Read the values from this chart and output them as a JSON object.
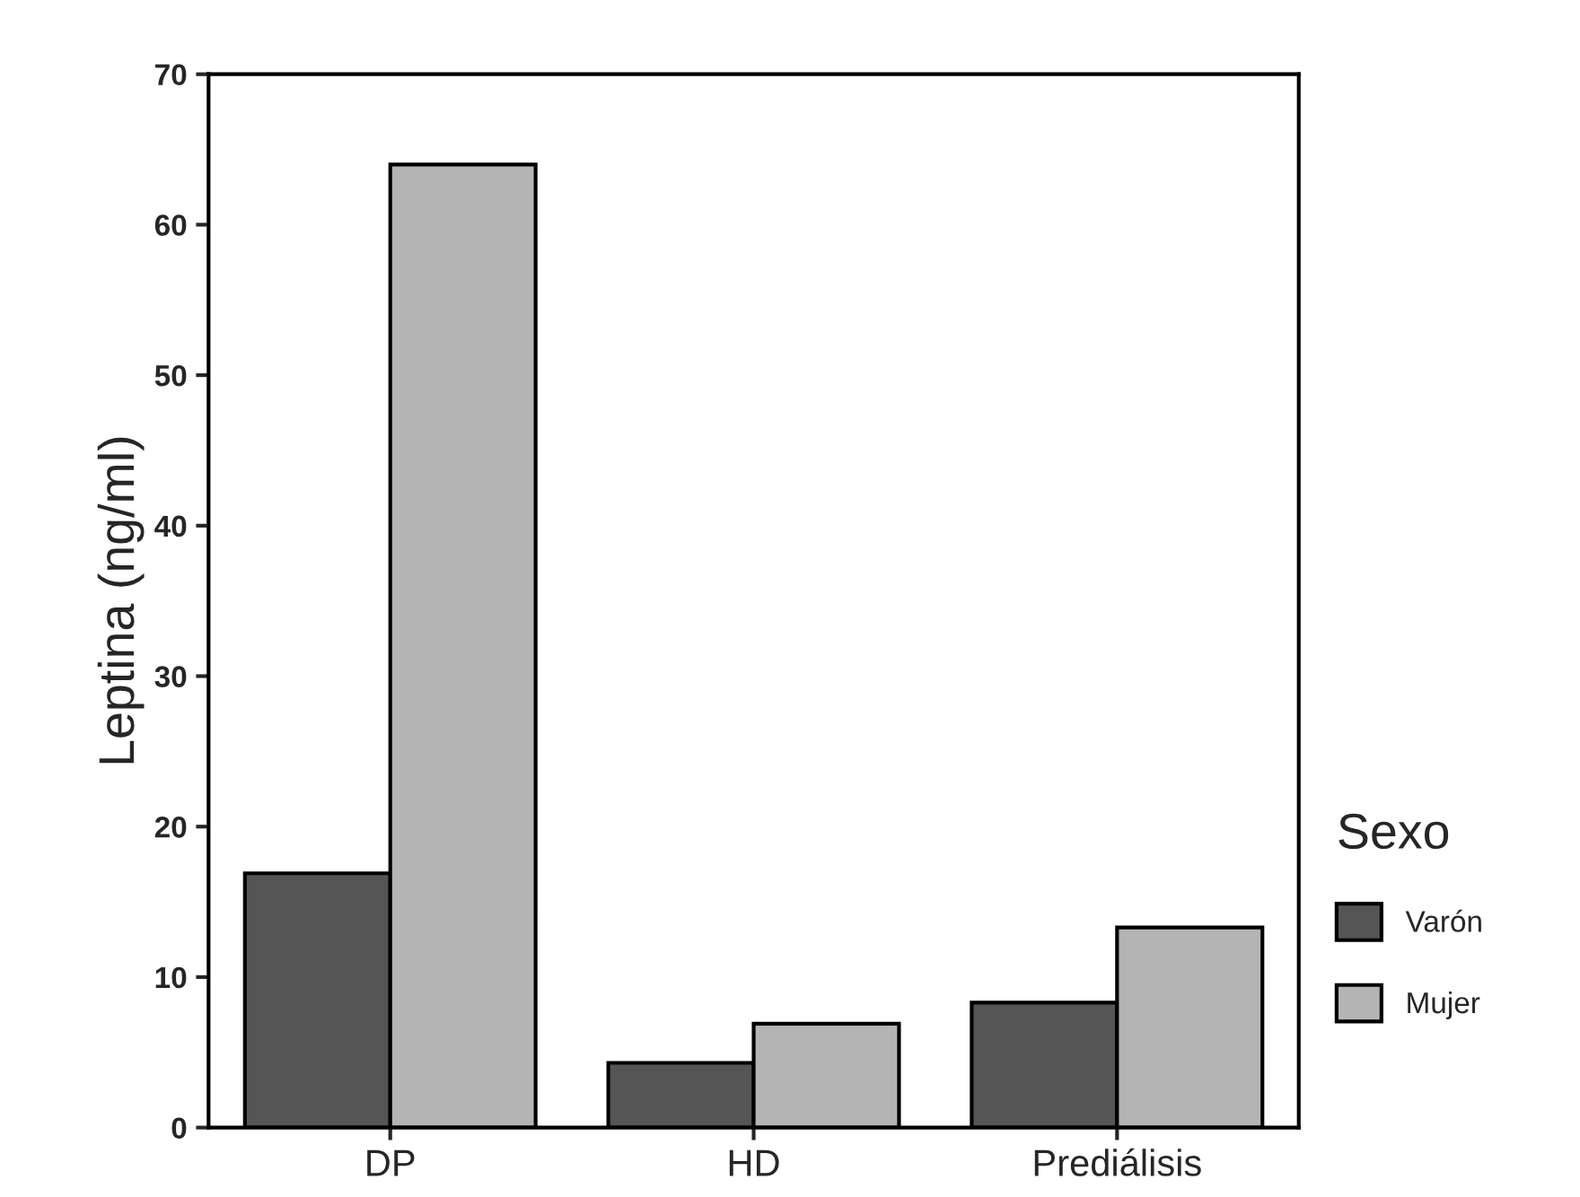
{
  "chart_data": {
    "type": "bar",
    "ylabel": "Leptina (ng/ml)",
    "legend_title": "Sexo",
    "categories": [
      "DP",
      "HD",
      "Prediálisis"
    ],
    "series": [
      {
        "name": "Varón",
        "color": "#555555",
        "values": [
          16.9,
          4.3,
          8.3
        ]
      },
      {
        "name": "Mujer",
        "color": "#b4b4b4",
        "values": [
          64.0,
          6.9,
          13.3
        ]
      }
    ],
    "ylim": [
      0,
      70
    ],
    "yticks": [
      0,
      10,
      20,
      30,
      40,
      50,
      60,
      70
    ],
    "grid": false,
    "legend": "right"
  }
}
